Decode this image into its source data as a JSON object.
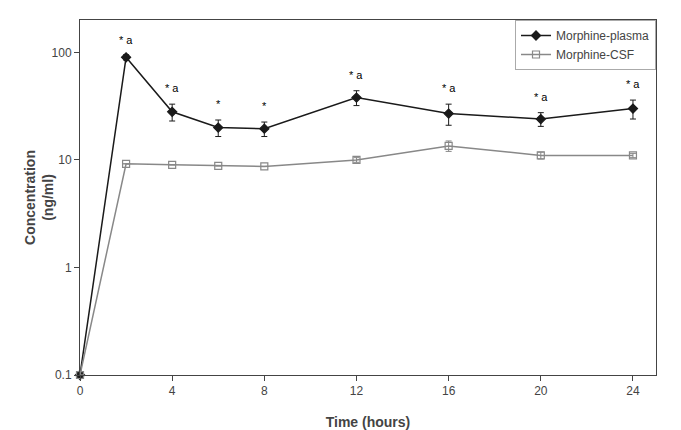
{
  "chart_data": {
    "type": "line",
    "x": [
      0,
      2,
      4,
      6,
      8,
      12,
      16,
      20,
      24
    ],
    "series": [
      {
        "name": "Morphine-plasma",
        "color": "#1a1a1a",
        "marker": "diamond",
        "values": [
          0.1,
          90.0,
          28.0,
          20.0,
          19.5,
          38.0,
          27.0,
          24.0,
          30.0
        ],
        "errors": [
          0,
          5,
          5,
          3.5,
          3,
          6,
          6,
          3.5,
          6
        ]
      },
      {
        "name": "Morphine-CSF",
        "color": "#888888",
        "marker": "square-open",
        "values": [
          0.1,
          9.2,
          9.0,
          8.8,
          8.7,
          10.0,
          13.5,
          11.0,
          11.0
        ],
        "errors": [
          0,
          0,
          0,
          0,
          0,
          0.5,
          1.5,
          0.8,
          0.5
        ]
      }
    ],
    "xlabel": "Time (hours)",
    "ylabel": "Concentration\n(ng/ml)",
    "xlim": [
      0,
      25
    ],
    "xticks": [
      0,
      4,
      8,
      12,
      16,
      20,
      24
    ],
    "ylim": [
      0.1,
      200
    ],
    "yticks": [
      0.1,
      1,
      10,
      100
    ],
    "log": "y",
    "grid": false,
    "legend": "upper right",
    "annotations": [
      {
        "x": 2,
        "y": 109.8,
        "text": "* a"
      },
      {
        "x": 4,
        "y": 38.94,
        "text": "* a"
      },
      {
        "x": 6,
        "y": 27.73,
        "text": "*"
      },
      {
        "x": 8,
        "y": 26.55,
        "text": "*"
      },
      {
        "x": 12,
        "y": 51.92,
        "text": "* a"
      },
      {
        "x": 16,
        "y": 38.94,
        "text": "* a"
      },
      {
        "x": 20,
        "y": 32.45,
        "text": "* a"
      },
      {
        "x": 24,
        "y": 42.48,
        "text": "* a"
      }
    ]
  }
}
